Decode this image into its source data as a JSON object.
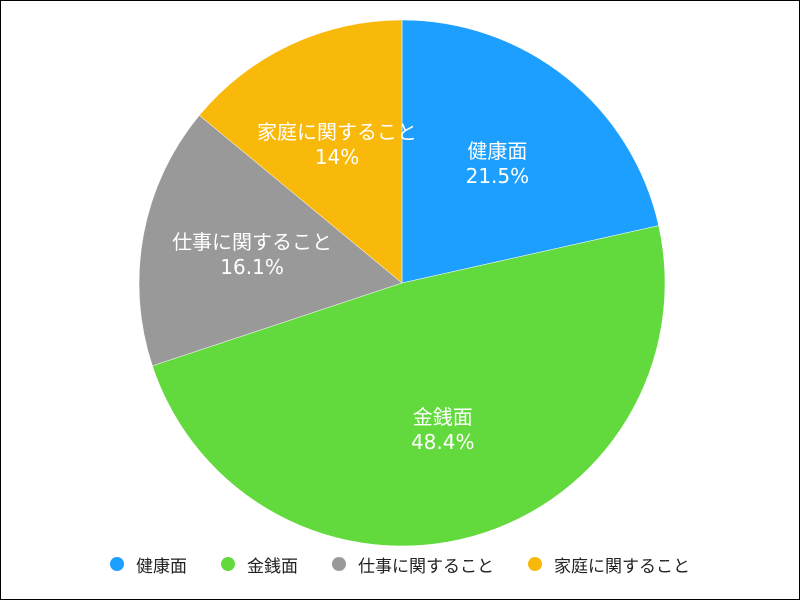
{
  "chart_data": {
    "type": "pie",
    "title": "",
    "legend_position": "bottom",
    "slices": [
      {
        "label": "健康面",
        "value": 21.5,
        "value_label": "21.5%",
        "color": "#1C9FFF"
      },
      {
        "label": "金銭面",
        "value": 48.4,
        "value_label": "48.4%",
        "color": "#62D93D"
      },
      {
        "label": "仕事に関すること",
        "value": 16.1,
        "value_label": "16.1%",
        "color": "#999999"
      },
      {
        "label": "家庭に関すること",
        "value": 14,
        "value_label": "14%",
        "color": "#F9B90B"
      }
    ]
  }
}
